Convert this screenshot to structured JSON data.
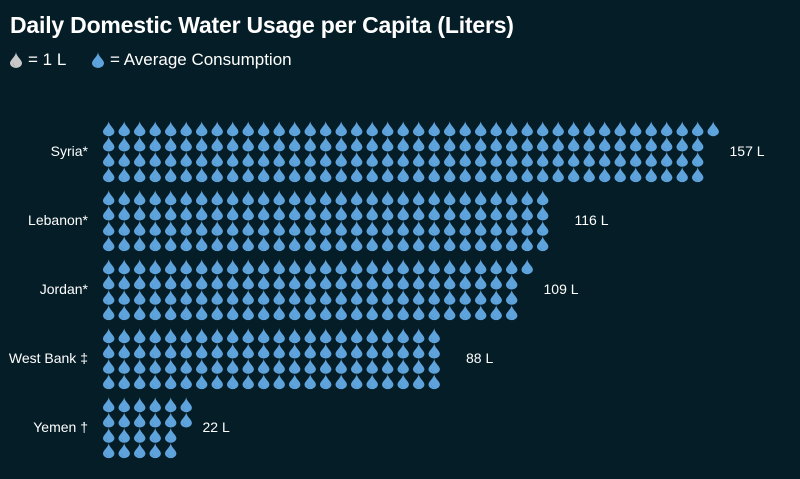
{
  "chart_data": {
    "type": "pictogram",
    "title": "Daily Domestic Water Usage per Capita (Liters)",
    "legend": [
      {
        "icon": "water-drop-gray",
        "label": "= 1 L"
      },
      {
        "icon": "water-drop-blue",
        "label": "= Average Consumption"
      }
    ],
    "unit_per_icon": 1,
    "rows_per_category": 4,
    "categories": [
      "Syria*",
      "Lebanon*",
      "Jordan*",
      "West Bank ‡",
      "Yemen †"
    ],
    "values": [
      157,
      116,
      109,
      88,
      22
    ],
    "value_labels": [
      "157 L",
      "116 L",
      "109 L",
      "88 L",
      "22 L"
    ]
  },
  "colors": {
    "background": "#041d26",
    "drop": "#5fa3dc",
    "drop_shade": "#2f6ea3",
    "legend_drop": "#c8c8c8",
    "text": "#ffffff"
  }
}
